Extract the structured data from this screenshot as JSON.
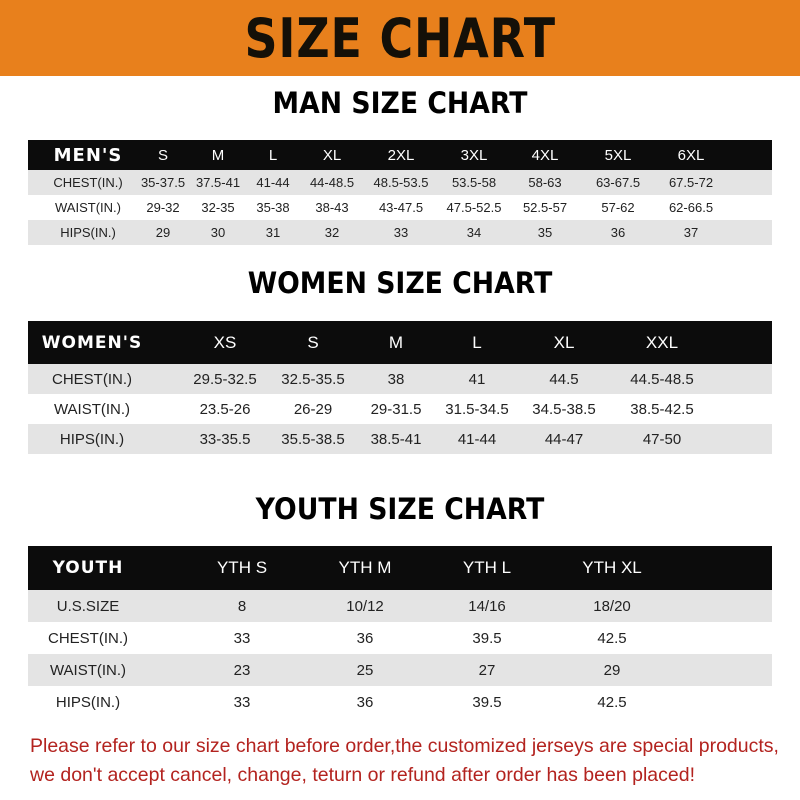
{
  "banner_title": "SIZE CHART",
  "colors": {
    "banner": "#e8801c",
    "header_row": "#0c0c0c",
    "stripe": "#e4e4e4",
    "note": "#b3231f"
  },
  "men": {
    "title": "MAN SIZE CHART",
    "header": [
      "MEN'S",
      "S",
      "M",
      "L",
      "XL",
      "2XL",
      "3XL",
      "4XL",
      "5XL",
      "6XL"
    ],
    "rows": [
      [
        "CHEST(IN.)",
        "35-37.5",
        "37.5-41",
        "41-44",
        "44-48.5",
        "48.5-53.5",
        "53.5-58",
        "58-63",
        "63-67.5",
        "67.5-72"
      ],
      [
        "WAIST(IN.)",
        "29-32",
        "32-35",
        "35-38",
        "38-43",
        "43-47.5",
        "47.5-52.5",
        "52.5-57",
        "57-62",
        "62-66.5"
      ],
      [
        "HIPS(IN.)",
        "29",
        "30",
        "31",
        "32",
        "33",
        "34",
        "35",
        "36",
        "37"
      ]
    ]
  },
  "women": {
    "title": "WOMEN SIZE CHART",
    "header": [
      "WOMEN'S",
      "XS",
      "S",
      "M",
      "L",
      "XL",
      "XXL"
    ],
    "rows": [
      [
        "CHEST(IN.)",
        "29.5-32.5",
        "32.5-35.5",
        "38",
        "41",
        "44.5",
        "44.5-48.5"
      ],
      [
        "WAIST(IN.)",
        "23.5-26",
        "26-29",
        "29-31.5",
        "31.5-34.5",
        "34.5-38.5",
        "38.5-42.5"
      ],
      [
        "HIPS(IN.)",
        "33-35.5",
        "35.5-38.5",
        "38.5-41",
        "41-44",
        "44-47",
        "47-50"
      ]
    ]
  },
  "youth": {
    "title": "YOUTH SIZE CHART",
    "header": [
      "YOUTH",
      "YTH S",
      "YTH M",
      "YTH L",
      "YTH XL"
    ],
    "rows": [
      [
        "U.S.SIZE",
        "8",
        "10/12",
        "14/16",
        "18/20"
      ],
      [
        "CHEST(IN.)",
        "33",
        "36",
        "39.5",
        "42.5"
      ],
      [
        "WAIST(IN.)",
        "23",
        "25",
        "27",
        "29"
      ],
      [
        "HIPS(IN.)",
        "33",
        "36",
        "39.5",
        "42.5"
      ]
    ]
  },
  "note": {
    "line1": "Please refer to our size chart before order,the customized jerseys are special products,",
    "line2": "we don't accept cancel, change, teturn or refund after order has been placed!"
  }
}
